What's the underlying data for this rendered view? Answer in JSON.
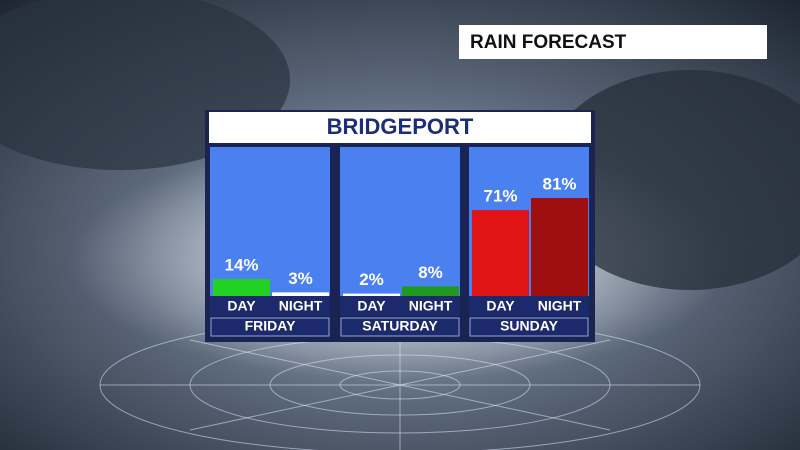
{
  "chart_data": {
    "type": "bar",
    "title": "RAIN FORECAST",
    "subtitle": "BRIDGEPORT",
    "categories": [
      "FRIDAY",
      "SATURDAY",
      "SUNDAY"
    ],
    "series": [
      {
        "name": "DAY",
        "colors": [
          "#22d122",
          "#ffffff",
          "#e01414"
        ],
        "values": [
          14,
          2,
          71
        ],
        "value_labels": [
          "14%",
          "2%",
          "71%"
        ]
      },
      {
        "name": "NIGHT",
        "colors": [
          "#ffffff",
          "#1f9a1f",
          "#a00f0f"
        ],
        "values": [
          3,
          8,
          81
        ],
        "value_labels": [
          "3%",
          "8%",
          "81%"
        ]
      }
    ]
  }
}
